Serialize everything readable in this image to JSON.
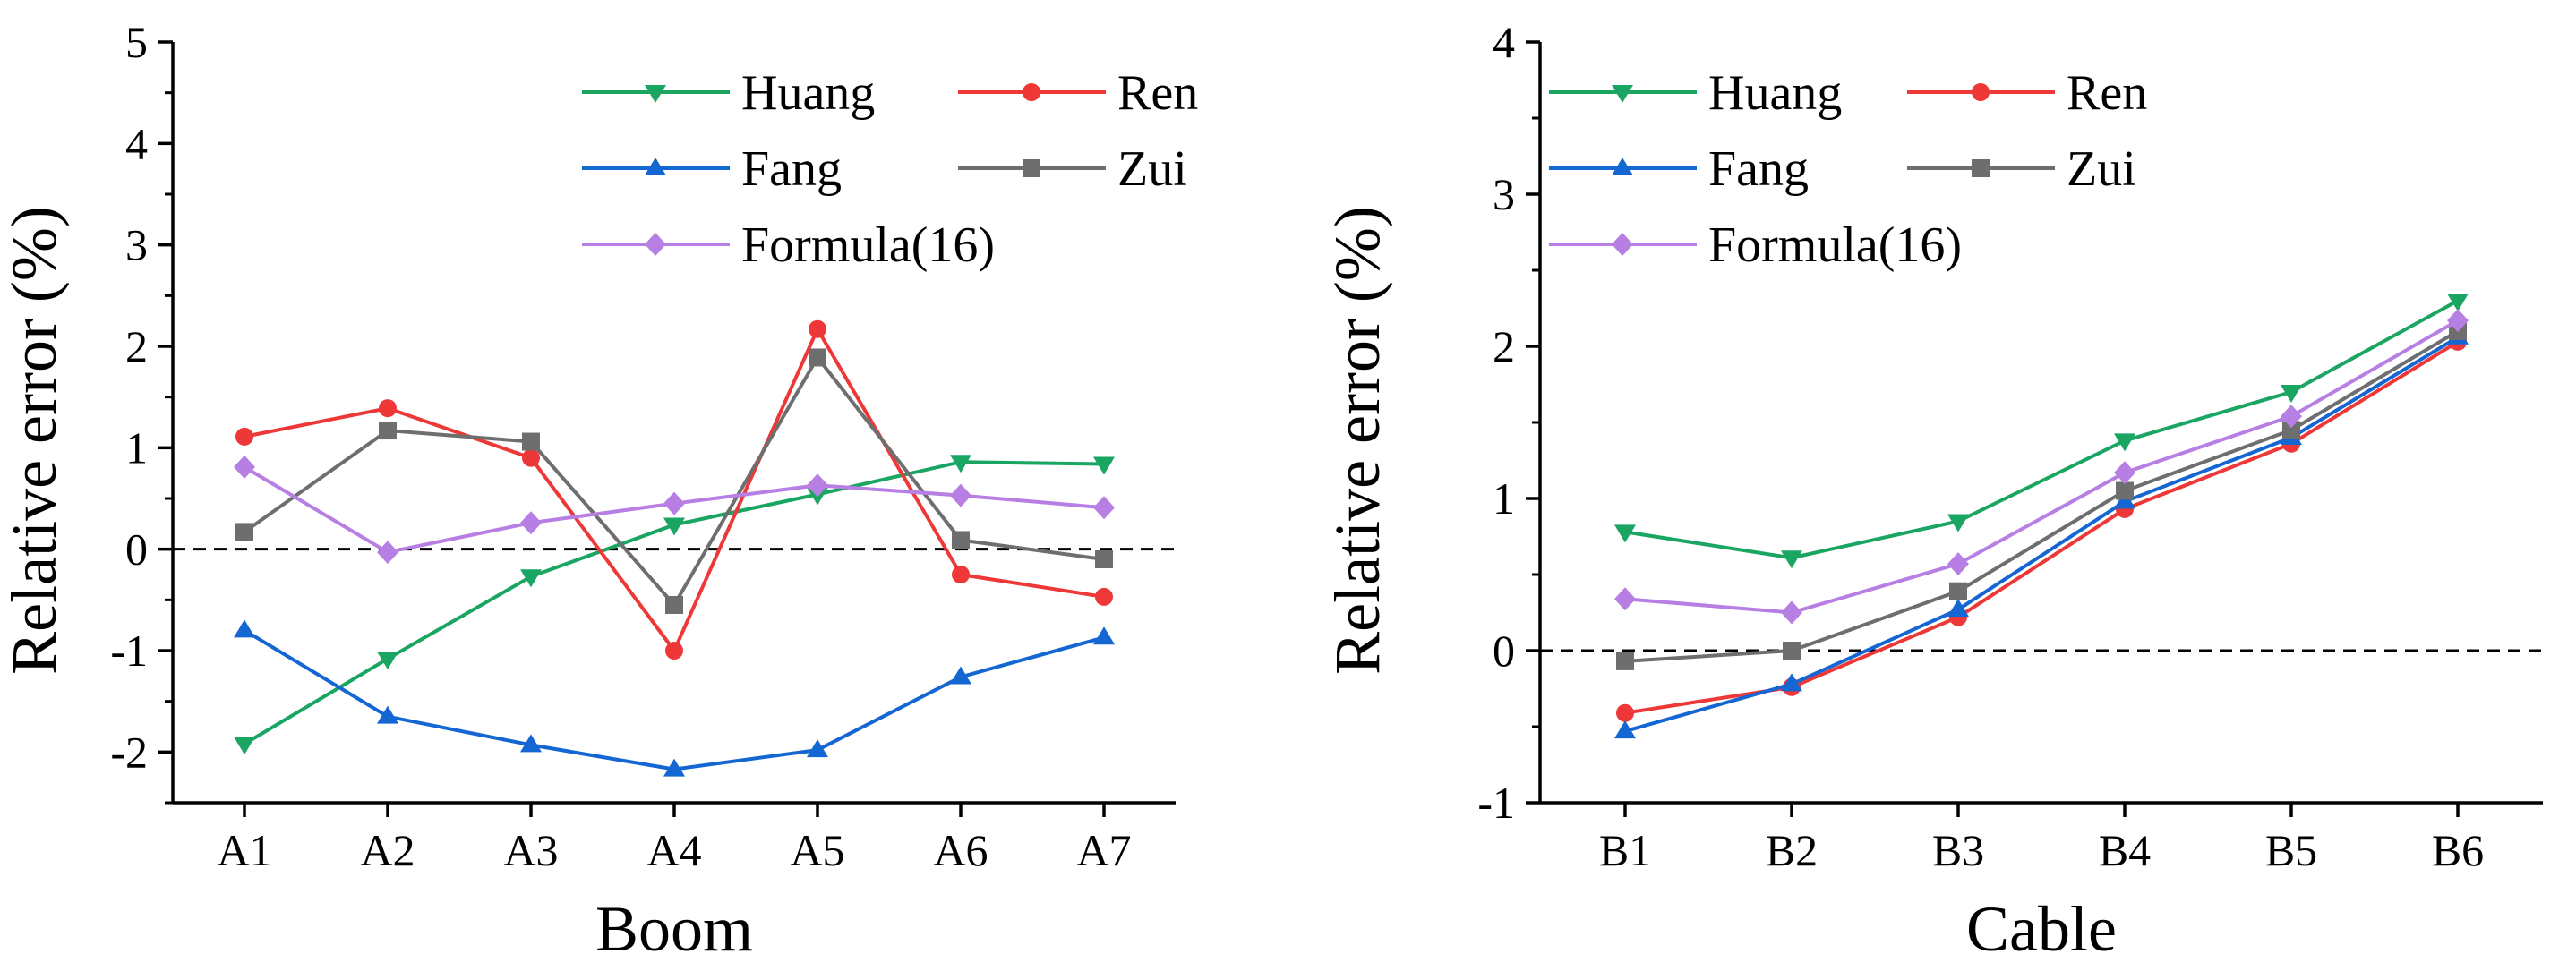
{
  "chart_data": [
    {
      "type": "line",
      "xlabel": "Boom",
      "ylabel": "Relative error (%)",
      "categories": [
        "A1",
        "A2",
        "A3",
        "A4",
        "A5",
        "A6",
        "A7"
      ],
      "ylim": [
        -2.5,
        5
      ],
      "yticks": [
        -2,
        -1,
        0,
        1,
        2,
        3,
        4,
        5
      ],
      "ytick_labels": [
        "-2",
        "-1",
        "0",
        "1",
        "2",
        "3",
        "4",
        "5"
      ],
      "reference_line": 0,
      "series": [
        {
          "name": "Huang",
          "color": "#1aa563",
          "marker": "triangle-down",
          "values": [
            -1.92,
            -1.08,
            -0.27,
            0.24,
            0.54,
            0.86,
            0.84
          ]
        },
        {
          "name": "Ren",
          "color": "#ee3838",
          "marker": "circle",
          "values": [
            1.11,
            1.39,
            0.9,
            -1.0,
            2.17,
            -0.25,
            -0.47
          ]
        },
        {
          "name": "Fang",
          "color": "#1466d2",
          "marker": "triangle-up",
          "values": [
            -0.8,
            -1.65,
            -1.93,
            -2.17,
            -1.98,
            -1.26,
            -0.87
          ]
        },
        {
          "name": "Zui",
          "color": "#6e6e6e",
          "marker": "square",
          "values": [
            0.17,
            1.17,
            1.06,
            -0.55,
            1.89,
            0.09,
            -0.1
          ]
        },
        {
          "name": "Formula(16)",
          "color": "#b77fe3",
          "marker": "diamond",
          "values": [
            0.81,
            -0.03,
            0.26,
            0.45,
            0.63,
            0.53,
            0.41
          ]
        }
      ],
      "legend": {
        "position": "top-right",
        "columns": 2
      }
    },
    {
      "type": "line",
      "xlabel": "Cable",
      "ylabel": "Relative error (%)",
      "categories": [
        "B1",
        "B2",
        "B3",
        "B4",
        "B5",
        "B6"
      ],
      "ylim": [
        -1,
        4
      ],
      "yticks": [
        -1,
        0,
        1,
        2,
        3,
        4
      ],
      "ytick_labels": [
        "-1",
        "0",
        "1",
        "2",
        "3",
        "4"
      ],
      "reference_line": 0,
      "series": [
        {
          "name": "Huang",
          "color": "#1aa563",
          "marker": "triangle-down",
          "values": [
            0.78,
            0.61,
            0.85,
            1.38,
            1.7,
            2.3
          ]
        },
        {
          "name": "Ren",
          "color": "#ee3838",
          "marker": "circle",
          "values": [
            -0.41,
            -0.24,
            0.22,
            0.93,
            1.36,
            2.03
          ]
        },
        {
          "name": "Fang",
          "color": "#1466d2",
          "marker": "triangle-up",
          "values": [
            -0.53,
            -0.22,
            0.27,
            0.98,
            1.4,
            2.06
          ]
        },
        {
          "name": "Zui",
          "color": "#6e6e6e",
          "marker": "square",
          "values": [
            -0.07,
            0.0,
            0.39,
            1.05,
            1.45,
            2.1
          ]
        },
        {
          "name": "Formula(16)",
          "color": "#b77fe3",
          "marker": "diamond",
          "values": [
            0.34,
            0.25,
            0.57,
            1.17,
            1.54,
            2.17
          ]
        }
      ],
      "legend": {
        "position": "top-left",
        "columns": 2
      }
    }
  ]
}
